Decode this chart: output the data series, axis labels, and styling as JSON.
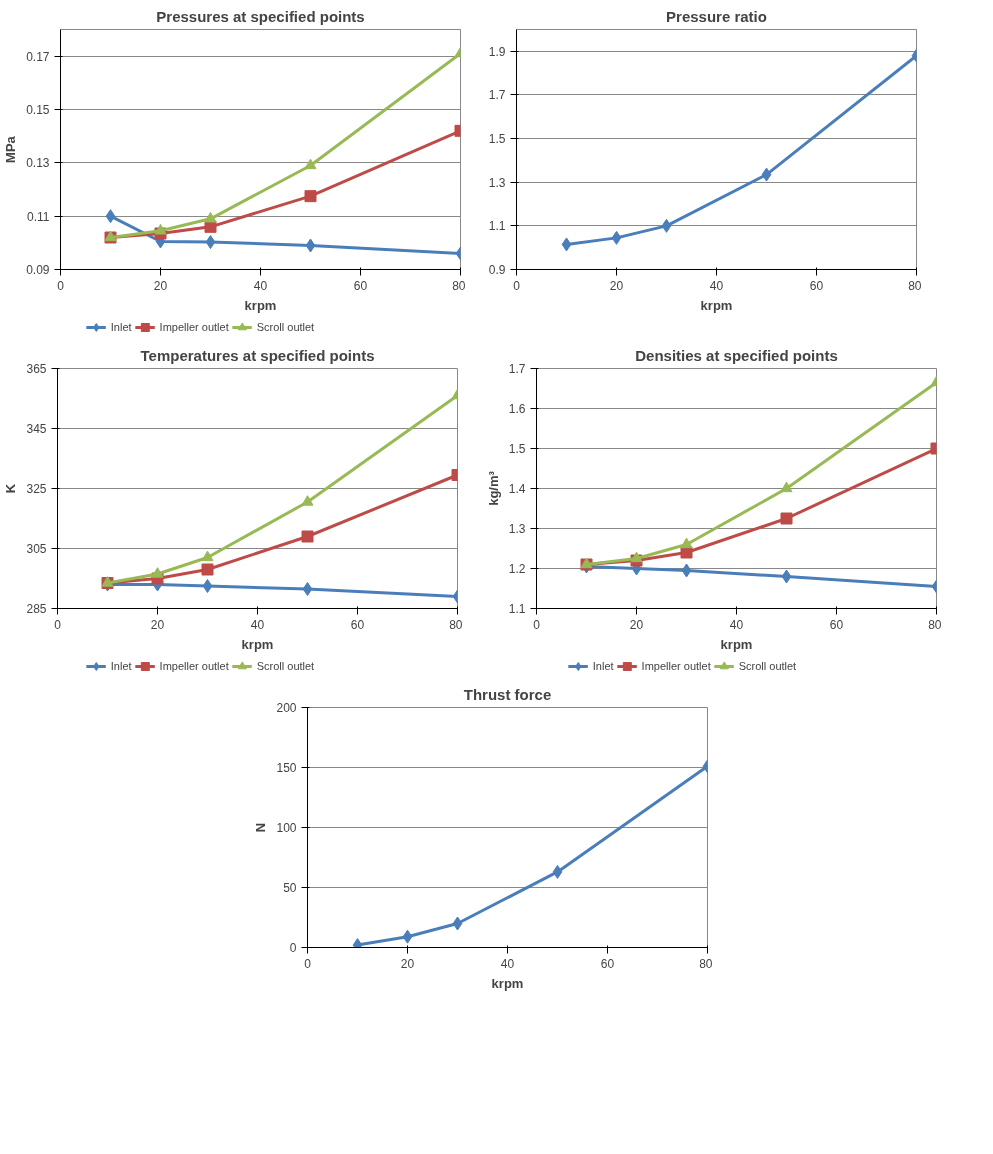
{
  "chart_data": [
    {
      "type": "line",
      "title": "Pressures at specified points",
      "xlabel": "krpm",
      "ylabel": "MPa",
      "x": [
        10,
        20,
        30,
        50,
        80
      ],
      "xlim": [
        0,
        80
      ],
      "xticks": [
        0,
        20,
        40,
        60,
        80
      ],
      "ylim": [
        0.09,
        0.18
      ],
      "yticks": [
        0.09,
        0.11,
        0.13,
        0.15,
        0.17
      ],
      "grid": "y",
      "legend": "bottom",
      "series": [
        {
          "name": "Inlet",
          "color": "#4a7ebb",
          "marker": "diamond",
          "values": [
            0.11,
            0.1005,
            0.1003,
            0.099,
            0.096
          ]
        },
        {
          "name": "Impeller outlet",
          "color": "#be4b48",
          "marker": "square",
          "values": [
            0.102,
            0.1035,
            0.106,
            0.1175,
            0.142
          ]
        },
        {
          "name": "Scroll outlet",
          "color": "#98b954",
          "marker": "triangle",
          "values": [
            0.102,
            0.1045,
            0.109,
            0.129,
            0.171
          ]
        }
      ]
    },
    {
      "type": "line",
      "title": "Pressure ratio",
      "xlabel": "krpm",
      "x": [
        10,
        20,
        30,
        50,
        80
      ],
      "xlim": [
        0,
        80
      ],
      "xticks": [
        0,
        20,
        40,
        60,
        80
      ],
      "ylim": [
        0.9,
        2.0
      ],
      "yticks": [
        0.9,
        1.1,
        1.3,
        1.5,
        1.7,
        1.9
      ],
      "grid": "y",
      "series": [
        {
          "color": "#4a7ebb",
          "marker": "diamond",
          "values": [
            1.015,
            1.045,
            1.1,
            1.335,
            1.88
          ]
        }
      ]
    },
    {
      "type": "line",
      "title": "Temperatures at specified points",
      "xlabel": "krpm",
      "ylabel": "K",
      "x": [
        10,
        20,
        30,
        50,
        80
      ],
      "xlim": [
        0,
        80
      ],
      "xticks": [
        0,
        20,
        40,
        60,
        80
      ],
      "ylim": [
        285,
        365
      ],
      "yticks": [
        285,
        305,
        325,
        345,
        365
      ],
      "grid": "y",
      "legend": "bottom",
      "series": [
        {
          "name": "Inlet",
          "color": "#4a7ebb",
          "marker": "diamond",
          "values": [
            293,
            293,
            292.5,
            291.5,
            289
          ]
        },
        {
          "name": "Impeller outlet",
          "color": "#be4b48",
          "marker": "square",
          "values": [
            293.5,
            295,
            298,
            309,
            329.5
          ]
        },
        {
          "name": "Scroll outlet",
          "color": "#98b954",
          "marker": "triangle",
          "values": [
            293.5,
            296.5,
            302,
            320.5,
            356
          ]
        }
      ]
    },
    {
      "type": "line",
      "title": "Densities at specified points",
      "xlabel": "krpm",
      "ylabel": "kg/m³",
      "x": [
        10,
        20,
        30,
        50,
        80
      ],
      "xlim": [
        0,
        80
      ],
      "xticks": [
        0,
        20,
        40,
        60,
        80
      ],
      "ylim": [
        1.1,
        1.7
      ],
      "yticks": [
        1.1,
        1.2,
        1.3,
        1.4,
        1.5,
        1.6,
        1.7
      ],
      "grid": "y",
      "legend": "bottom",
      "series": [
        {
          "name": "Inlet",
          "color": "#4a7ebb",
          "marker": "diamond",
          "values": [
            1.205,
            1.2,
            1.195,
            1.18,
            1.155
          ]
        },
        {
          "name": "Impeller outlet",
          "color": "#be4b48",
          "marker": "square",
          "values": [
            1.21,
            1.22,
            1.24,
            1.325,
            1.5
          ]
        },
        {
          "name": "Scroll outlet",
          "color": "#98b954",
          "marker": "triangle",
          "values": [
            1.21,
            1.225,
            1.26,
            1.4,
            1.665
          ]
        }
      ]
    },
    {
      "type": "line",
      "title": "Thrust force",
      "xlabel": "krpm",
      "ylabel": "N",
      "x": [
        10,
        20,
        30,
        50,
        80
      ],
      "xlim": [
        0,
        80
      ],
      "xticks": [
        0,
        20,
        40,
        60,
        80
      ],
      "ylim": [
        0,
        200
      ],
      "yticks": [
        0,
        50,
        100,
        150,
        200
      ],
      "grid": "y",
      "series": [
        {
          "color": "#4a7ebb",
          "marker": "diamond",
          "values": [
            2,
            9,
            20,
            63,
            151
          ]
        }
      ]
    }
  ]
}
